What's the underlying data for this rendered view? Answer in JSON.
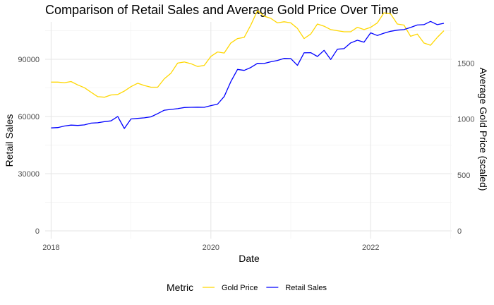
{
  "chart_data": {
    "type": "line",
    "title": "Comparison of Retail Sales and Average Gold Price Over Time",
    "xlabel": "Date",
    "ylabel": "Retail Sales",
    "y2label": "Average Gold Price (scaled)",
    "x_ticks": [
      "2018",
      "2020",
      "2022"
    ],
    "y_ticks": [
      "0",
      "30000",
      "60000",
      "90000"
    ],
    "y2_ticks": [
      "0",
      "500",
      "1000",
      "1500"
    ],
    "ylim": [
      0,
      110000
    ],
    "y2lim": [
      0,
      1875
    ],
    "xlim": [
      "2017-12",
      "2022-12"
    ],
    "grid": true,
    "legend_position": "bottom",
    "legend_title": "Metric",
    "series": [
      {
        "name": "Gold Price",
        "color": "#FFD700",
        "axis": "right",
        "x": [
          "2018-01",
          "2018-02",
          "2018-03",
          "2018-04",
          "2018-05",
          "2018-06",
          "2018-07",
          "2018-08",
          "2018-09",
          "2018-10",
          "2018-11",
          "2018-12",
          "2019-01",
          "2019-02",
          "2019-03",
          "2019-04",
          "2019-05",
          "2019-06",
          "2019-07",
          "2019-08",
          "2019-09",
          "2019-10",
          "2019-11",
          "2019-12",
          "2020-01",
          "2020-02",
          "2020-03",
          "2020-04",
          "2020-05",
          "2020-06",
          "2020-07",
          "2020-08",
          "2020-09",
          "2020-10",
          "2020-11",
          "2020-12",
          "2021-01",
          "2021-02",
          "2021-03",
          "2021-04",
          "2021-05",
          "2021-06",
          "2021-07",
          "2021-08",
          "2021-09",
          "2021-10",
          "2021-11",
          "2021-12",
          "2022-01",
          "2022-02",
          "2022-03",
          "2022-04",
          "2022-05",
          "2022-06",
          "2022-07",
          "2022-08",
          "2022-09",
          "2022-10",
          "2022-11",
          "2022-12"
        ],
        "values": [
          1330,
          1330,
          1325,
          1335,
          1305,
          1280,
          1240,
          1200,
          1195,
          1215,
          1220,
          1250,
          1290,
          1320,
          1300,
          1285,
          1285,
          1360,
          1410,
          1500,
          1510,
          1495,
          1470,
          1480,
          1560,
          1600,
          1590,
          1680,
          1720,
          1730,
          1840,
          1970,
          1920,
          1900,
          1860,
          1870,
          1860,
          1810,
          1720,
          1760,
          1850,
          1830,
          1800,
          1790,
          1780,
          1780,
          1820,
          1800,
          1820,
          1860,
          1950,
          1940,
          1850,
          1840,
          1740,
          1760,
          1680,
          1660,
          1730,
          1790
        ]
      },
      {
        "name": "Retail Sales",
        "color": "#0000FF",
        "axis": "left",
        "x": [
          "2018-01",
          "2018-02",
          "2018-03",
          "2018-04",
          "2018-05",
          "2018-06",
          "2018-07",
          "2018-08",
          "2018-09",
          "2018-10",
          "2018-11",
          "2018-12",
          "2019-01",
          "2019-02",
          "2019-03",
          "2019-04",
          "2019-05",
          "2019-06",
          "2019-07",
          "2019-08",
          "2019-09",
          "2019-10",
          "2019-11",
          "2019-12",
          "2020-01",
          "2020-02",
          "2020-03",
          "2020-04",
          "2020-05",
          "2020-06",
          "2020-07",
          "2020-08",
          "2020-09",
          "2020-10",
          "2020-11",
          "2020-12",
          "2021-01",
          "2021-02",
          "2021-03",
          "2021-04",
          "2021-05",
          "2021-06",
          "2021-07",
          "2021-08",
          "2021-09",
          "2021-10",
          "2021-11",
          "2021-12",
          "2022-01",
          "2022-02",
          "2022-03",
          "2022-04",
          "2022-05",
          "2022-06",
          "2022-07",
          "2022-08",
          "2022-09",
          "2022-10",
          "2022-11",
          "2022-12"
        ],
        "values": [
          54000,
          54200,
          55000,
          55500,
          55300,
          55600,
          56500,
          56700,
          57300,
          57700,
          60000,
          53700,
          58700,
          59000,
          59300,
          59800,
          61500,
          63300,
          63700,
          64100,
          64700,
          64800,
          64900,
          64800,
          65700,
          66500,
          70500,
          78300,
          84700,
          84200,
          85700,
          87900,
          87800,
          88700,
          89400,
          90500,
          90400,
          86800,
          93400,
          93500,
          91500,
          94700,
          89900,
          95300,
          95600,
          98600,
          100000,
          99000,
          103900,
          102500,
          103700,
          104700,
          105300,
          105600,
          106700,
          108000,
          108200,
          109900,
          108200,
          108900
        ]
      }
    ]
  }
}
